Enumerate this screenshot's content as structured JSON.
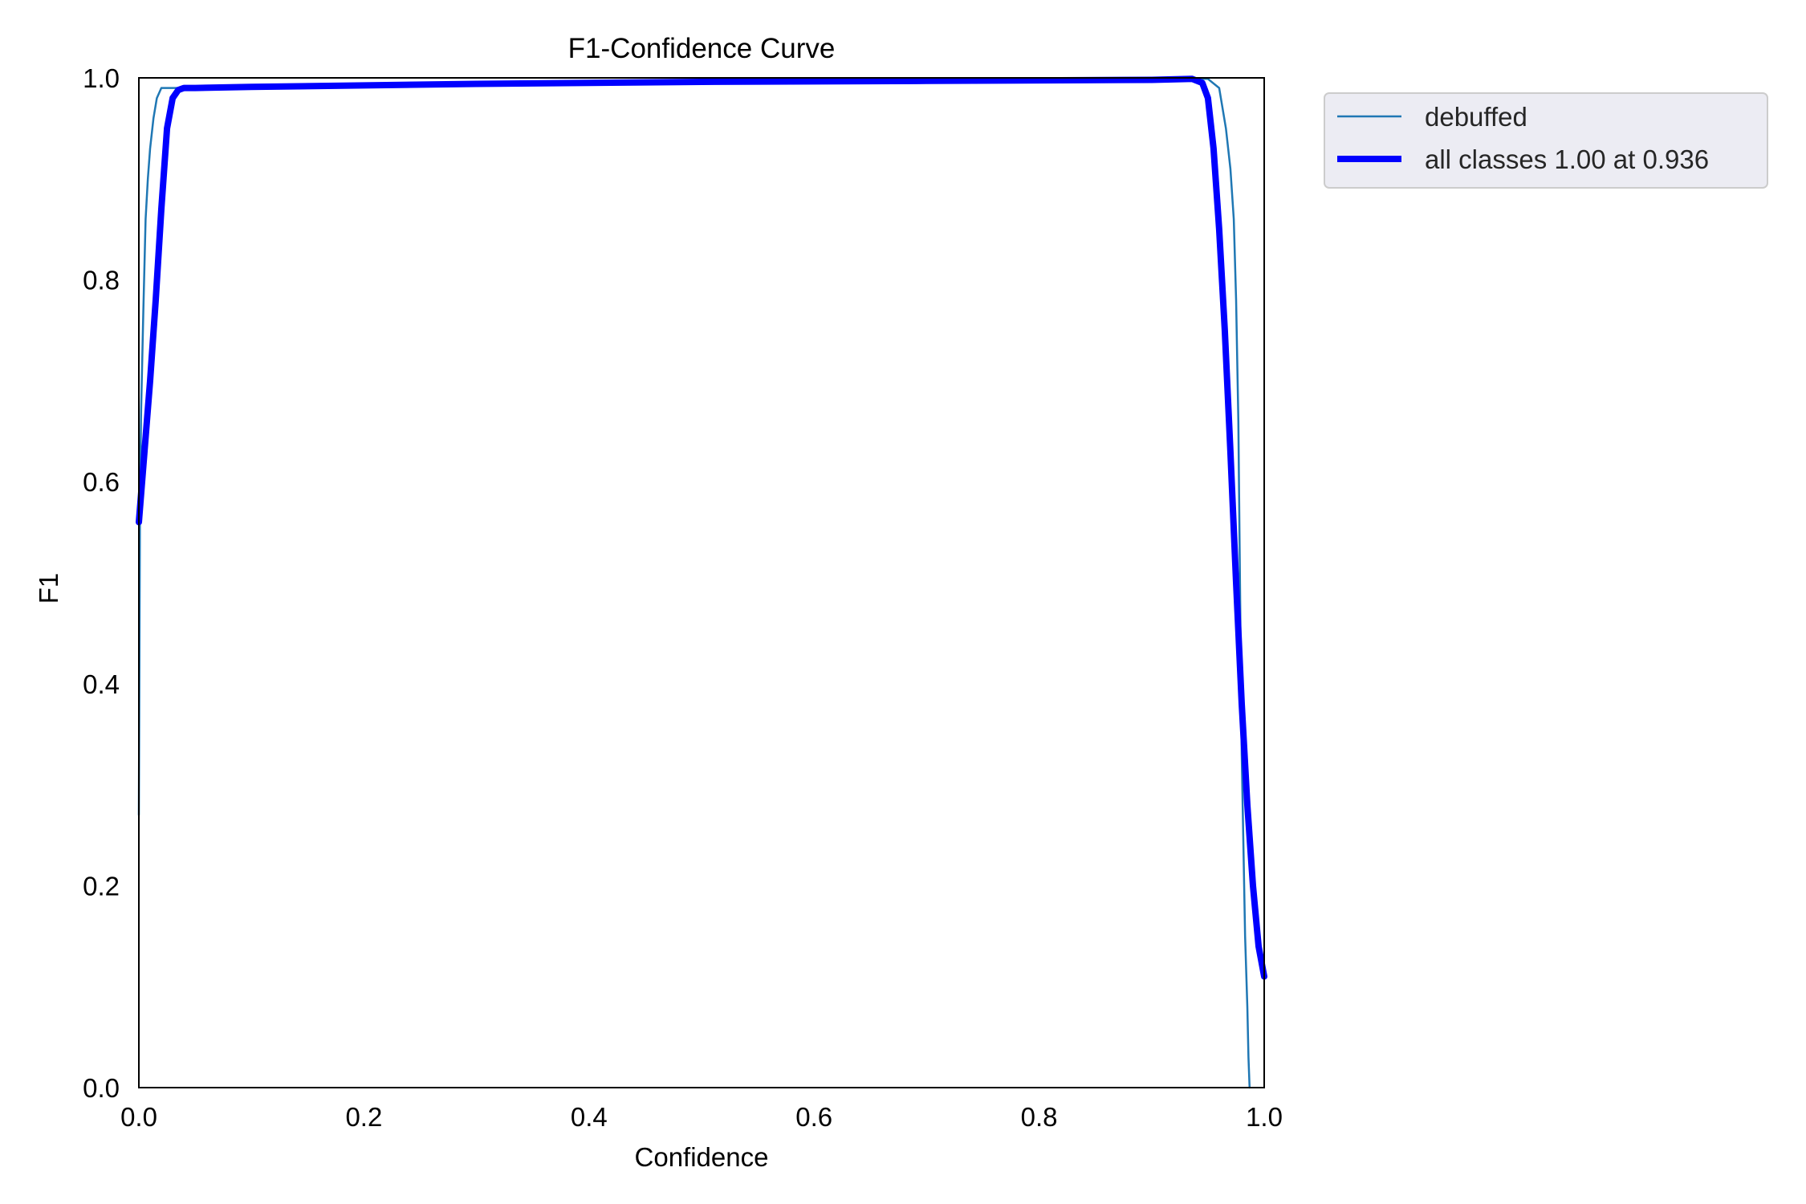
{
  "chart_data": {
    "type": "line",
    "title": "F1-Confidence Curve",
    "xlabel": "Confidence",
    "ylabel": "F1",
    "xlim": [
      0,
      1
    ],
    "ylim": [
      0,
      1
    ],
    "xticks": [
      "0.0",
      "0.2",
      "0.4",
      "0.6",
      "0.8",
      "1.0"
    ],
    "yticks": [
      "0.0",
      "0.2",
      "0.4",
      "0.6",
      "0.8",
      "1.0"
    ],
    "grid": false,
    "legend_position": "outside-top-right",
    "series": [
      {
        "name": "debuffed",
        "color": "#1f77b4",
        "x": [
          0.0,
          0.001,
          0.002,
          0.004,
          0.006,
          0.008,
          0.01,
          0.013,
          0.016,
          0.02,
          0.03,
          0.05,
          0.1,
          0.3,
          0.5,
          0.7,
          0.9,
          0.95,
          0.96,
          0.963,
          0.966,
          0.97,
          0.973,
          0.975,
          0.977,
          0.978,
          0.979,
          0.98,
          0.981,
          0.983,
          0.985,
          0.986,
          0.987
        ],
        "y": [
          0.27,
          0.58,
          0.67,
          0.77,
          0.86,
          0.9,
          0.93,
          0.96,
          0.98,
          0.99,
          0.99,
          0.99,
          0.992,
          0.995,
          0.997,
          0.998,
          0.999,
          0.999,
          0.99,
          0.97,
          0.95,
          0.91,
          0.86,
          0.78,
          0.66,
          0.55,
          0.44,
          0.33,
          0.27,
          0.15,
          0.08,
          0.03,
          0.0
        ]
      },
      {
        "name": "all classes 1.00 at 0.936",
        "color": "#0000ff",
        "x": [
          0.0,
          0.005,
          0.01,
          0.015,
          0.02,
          0.025,
          0.03,
          0.035,
          0.04,
          0.05,
          0.1,
          0.3,
          0.5,
          0.7,
          0.9,
          0.936,
          0.945,
          0.95,
          0.955,
          0.96,
          0.965,
          0.97,
          0.975,
          0.98,
          0.985,
          0.99,
          0.995,
          1.0
        ],
        "y": [
          0.56,
          0.63,
          0.7,
          0.78,
          0.87,
          0.95,
          0.98,
          0.988,
          0.99,
          0.99,
          0.991,
          0.994,
          0.996,
          0.997,
          0.998,
          0.999,
          0.995,
          0.98,
          0.93,
          0.85,
          0.75,
          0.63,
          0.5,
          0.38,
          0.28,
          0.2,
          0.14,
          0.11
        ]
      }
    ]
  }
}
